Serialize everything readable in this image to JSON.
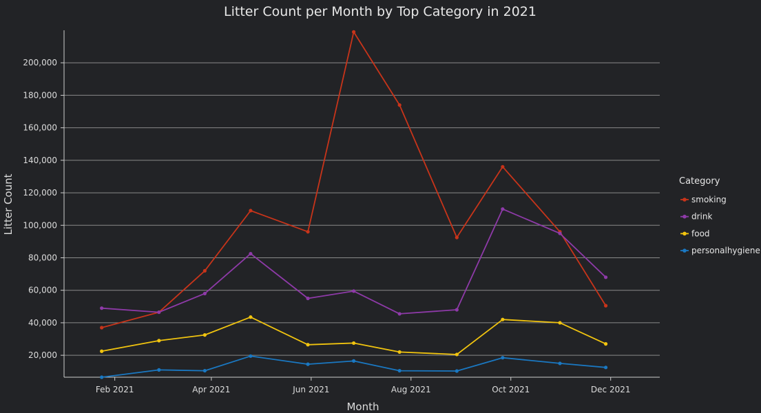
{
  "chart_data": {
    "type": "line",
    "title": "Litter Count per Month by Top Category in 2021",
    "xlabel": "Month",
    "ylabel": "Litter Count",
    "x": [
      "2021-01-24",
      "2021-02-28",
      "2021-03-28",
      "2021-04-25",
      "2021-05-30",
      "2021-06-27",
      "2021-07-25",
      "2021-08-29",
      "2021-09-26",
      "2021-10-31",
      "2021-11-28"
    ],
    "x_ticks": [
      {
        "date": "2021-02-01",
        "label": "Feb 2021"
      },
      {
        "date": "2021-04-01",
        "label": "Apr 2021"
      },
      {
        "date": "2021-06-01",
        "label": "Jun 2021"
      },
      {
        "date": "2021-08-01",
        "label": "Aug 2021"
      },
      {
        "date": "2021-10-01",
        "label": "Oct 2021"
      },
      {
        "date": "2021-12-01",
        "label": "Dec 2021"
      }
    ],
    "xlim": [
      "2021-01-01",
      "2021-12-31"
    ],
    "ylim": [
      6500,
      220000
    ],
    "y_ticks": [
      20000,
      40000,
      60000,
      80000,
      100000,
      120000,
      140000,
      160000,
      180000,
      200000
    ],
    "y_tick_labels": [
      "20,000",
      "40,000",
      "60,000",
      "80,000",
      "100,000",
      "120,000",
      "140,000",
      "160,000",
      "180,000",
      "200,000"
    ],
    "grid": true,
    "legend": {
      "title": "Category",
      "position": "right"
    },
    "series": [
      {
        "name": "smoking",
        "color": "#c8341a",
        "values": [
          37000,
          46500,
          72000,
          109000,
          96000,
          219000,
          174000,
          92500,
          136000,
          96000,
          50500
        ]
      },
      {
        "name": "drink",
        "color": "#8e3aa8",
        "values": [
          49000,
          46500,
          58000,
          82500,
          55000,
          59500,
          45500,
          48000,
          110000,
          95000,
          68000
        ]
      },
      {
        "name": "food",
        "color": "#f1c40f",
        "values": [
          22500,
          29000,
          32500,
          43500,
          26500,
          27500,
          22000,
          20500,
          42000,
          40000,
          27000
        ]
      },
      {
        "name": "personalhygiene",
        "color": "#1a78c2",
        "values": [
          6500,
          11000,
          10500,
          19500,
          14500,
          16500,
          10500,
          10300,
          18500,
          15000,
          12500
        ]
      }
    ]
  }
}
